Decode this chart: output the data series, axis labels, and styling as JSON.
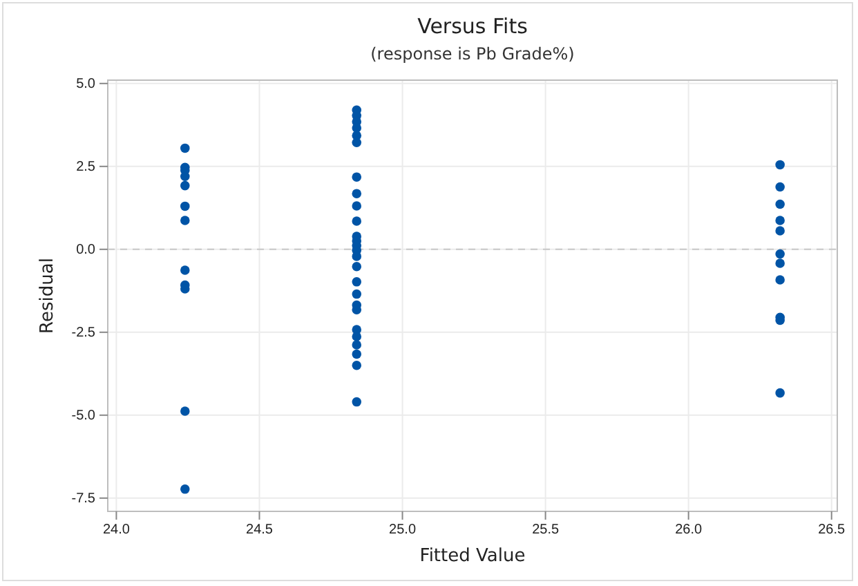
{
  "chart_data": {
    "type": "scatter",
    "title": "Versus Fits",
    "subtitle": "(response is Pb Grade%)",
    "xlabel": "Fitted Value",
    "ylabel": "Residual",
    "series": [
      {
        "color": "#0054a6",
        "x": [
          24.24,
          24.24,
          24.24,
          24.24,
          24.24,
          24.24,
          24.24,
          24.24,
          24.24,
          24.24,
          24.24,
          24.24
        ],
        "values": [
          3.05,
          2.47,
          2.38,
          2.2,
          1.92,
          1.3,
          0.87,
          -0.63,
          -1.08,
          -1.19,
          -4.88,
          -7.23
        ]
      },
      {
        "color": "#0054a6",
        "x": [
          24.84,
          24.84,
          24.84,
          24.84,
          24.84,
          24.84,
          24.84,
          24.84,
          24.84,
          24.84,
          24.84,
          24.84,
          24.84,
          24.84,
          24.84,
          24.84,
          24.84,
          24.84,
          24.84,
          24.84,
          24.84,
          24.84,
          24.84,
          24.84,
          24.84,
          24.84
        ],
        "values": [
          4.2,
          4.03,
          3.85,
          3.66,
          3.43,
          3.22,
          2.18,
          1.68,
          1.31,
          0.85,
          0.39,
          0.25,
          0.11,
          -0.03,
          -0.21,
          -0.52,
          -0.98,
          -1.35,
          -1.68,
          -1.82,
          -2.42,
          -2.63,
          -2.88,
          -3.16,
          -3.5,
          -4.6
        ]
      },
      {
        "color": "#0054a6",
        "x": [
          26.32,
          26.32,
          26.32,
          26.32,
          26.32,
          26.32,
          26.32,
          26.32,
          26.32,
          26.32,
          26.32
        ],
        "values": [
          2.55,
          1.88,
          1.36,
          0.87,
          0.56,
          -0.14,
          -0.42,
          -0.92,
          -2.05,
          -2.14,
          -4.33
        ]
      }
    ],
    "xlim": [
      23.97,
      26.52
    ],
    "xticks": [
      {
        "value": 24,
        "label": "24.0"
      },
      24.5,
      {
        "value": 25,
        "label": "25.0"
      },
      25.5,
      {
        "value": 26,
        "label": "26.0"
      },
      26.5
    ],
    "ylim": [
      -7.9,
      5.1
    ],
    "yticks": [
      {
        "value": -7.5,
        "label": "-7.5"
      },
      {
        "value": -5,
        "label": "-5.0"
      },
      {
        "value": -2.5,
        "label": "-2.5"
      },
      {
        "value": 0,
        "label": "0.0"
      },
      {
        "value": 2.5,
        "label": "2.5"
      },
      {
        "value": 5,
        "label": "5.0"
      }
    ],
    "ref_lines": [
      {
        "axis": "y",
        "value": 0,
        "color": "#c8c8c8",
        "line_style": "dashed"
      }
    ],
    "grid": true,
    "marker": "circle"
  }
}
